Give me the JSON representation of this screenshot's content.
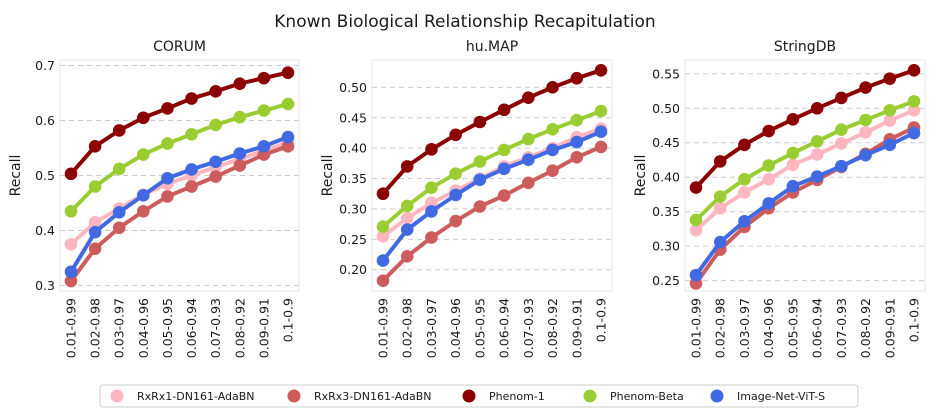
{
  "figure_title": "Known Biological Relationship Recapitulation",
  "chart_data": [
    {
      "type": "line",
      "title": "CORUM",
      "ylabel": "Recall",
      "categories": [
        "0.01-0.99",
        "0.02-0.98",
        "0.03-0.97",
        "0.04-0.96",
        "0.05-0.95",
        "0.06-0.94",
        "0.07-0.93",
        "0.08-0.92",
        "0.09-0.91",
        "0.1-0.9"
      ],
      "ylim": [
        0.29,
        0.71
      ],
      "yticks": [
        0.3,
        0.4,
        0.5,
        0.6,
        0.7
      ],
      "ytick_labels": [
        "0.3",
        "0.4",
        "0.5",
        "0.6",
        "0.7"
      ],
      "series": [
        {
          "name": "RxRx1-DN161-AdaBN",
          "color": "#ffb6c1",
          "values": [
            0.375,
            0.415,
            0.44,
            0.465,
            0.485,
            0.5,
            0.515,
            0.53,
            0.545,
            0.56
          ]
        },
        {
          "name": "RxRx3-DN161-AdaBN",
          "color": "#cd5c5c",
          "values": [
            0.308,
            0.367,
            0.405,
            0.435,
            0.462,
            0.48,
            0.498,
            0.518,
            0.538,
            0.553
          ]
        },
        {
          "name": "Phenom-1",
          "color": "#8b0000",
          "values": [
            0.503,
            0.553,
            0.582,
            0.605,
            0.622,
            0.64,
            0.653,
            0.667,
            0.677,
            0.687
          ]
        },
        {
          "name": "Phenom-Beta",
          "color": "#9acd32",
          "values": [
            0.435,
            0.48,
            0.512,
            0.538,
            0.558,
            0.575,
            0.592,
            0.606,
            0.618,
            0.63
          ]
        },
        {
          "name": "Image-Net-ViT-S",
          "color": "#4169e1",
          "values": [
            0.325,
            0.397,
            0.433,
            0.464,
            0.495,
            0.511,
            0.525,
            0.54,
            0.553,
            0.57
          ]
        }
      ]
    },
    {
      "type": "line",
      "title": "hu.MAP",
      "ylabel": "Recall",
      "categories": [
        "0.01-0.99",
        "0.02-0.98",
        "0.03-0.97",
        "0.04-0.96",
        "0.05-0.95",
        "0.06-0.94",
        "0.07-0.93",
        "0.08-0.92",
        "0.09-0.91",
        "0.1-0.9"
      ],
      "ylim": [
        0.165,
        0.545
      ],
      "yticks": [
        0.2,
        0.25,
        0.3,
        0.35,
        0.4,
        0.45,
        0.5
      ],
      "ytick_labels": [
        "0.20",
        "0.25",
        "0.30",
        "0.35",
        "0.40",
        "0.45",
        "0.50"
      ],
      "series": [
        {
          "name": "RxRx1-DN161-AdaBN",
          "color": "#ffb6c1",
          "values": [
            0.255,
            0.285,
            0.31,
            0.33,
            0.35,
            0.37,
            0.385,
            0.4,
            0.418,
            0.432
          ]
        },
        {
          "name": "RxRx3-DN161-AdaBN",
          "color": "#cd5c5c",
          "values": [
            0.182,
            0.222,
            0.253,
            0.28,
            0.304,
            0.322,
            0.343,
            0.363,
            0.385,
            0.402
          ]
        },
        {
          "name": "Phenom-1",
          "color": "#8b0000",
          "values": [
            0.325,
            0.37,
            0.398,
            0.422,
            0.443,
            0.463,
            0.483,
            0.5,
            0.515,
            0.528
          ]
        },
        {
          "name": "Phenom-Beta",
          "color": "#9acd32",
          "values": [
            0.271,
            0.305,
            0.335,
            0.358,
            0.378,
            0.397,
            0.415,
            0.431,
            0.446,
            0.461
          ]
        },
        {
          "name": "Image-Net-ViT-S",
          "color": "#4169e1",
          "values": [
            0.215,
            0.266,
            0.296,
            0.323,
            0.348,
            0.366,
            0.381,
            0.397,
            0.41,
            0.427
          ]
        }
      ]
    },
    {
      "type": "line",
      "title": "StringDB",
      "ylabel": "Recall",
      "categories": [
        "0.01-0.99",
        "0.02-0.98",
        "0.03-0.97",
        "0.04-0.96",
        "0.05-0.95",
        "0.06-0.94",
        "0.07-0.93",
        "0.08-0.92",
        "0.09-0.91",
        "0.1-0.9"
      ],
      "ylim": [
        0.235,
        0.57
      ],
      "yticks": [
        0.25,
        0.3,
        0.35,
        0.4,
        0.45,
        0.5,
        0.55
      ],
      "ytick_labels": [
        "0.25",
        "0.30",
        "0.35",
        "0.40",
        "0.45",
        "0.50",
        "0.55"
      ],
      "series": [
        {
          "name": "RxRx1-DN161-AdaBN",
          "color": "#ffb6c1",
          "values": [
            0.323,
            0.355,
            0.378,
            0.397,
            0.418,
            0.433,
            0.449,
            0.465,
            0.482,
            0.497
          ]
        },
        {
          "name": "RxRx3-DN161-AdaBN",
          "color": "#cd5c5c",
          "values": [
            0.246,
            0.295,
            0.328,
            0.355,
            0.378,
            0.396,
            0.415,
            0.434,
            0.455,
            0.472
          ]
        },
        {
          "name": "Phenom-1",
          "color": "#8b0000",
          "values": [
            0.385,
            0.423,
            0.447,
            0.467,
            0.484,
            0.5,
            0.515,
            0.53,
            0.543,
            0.555
          ]
        },
        {
          "name": "Phenom-Beta",
          "color": "#9acd32",
          "values": [
            0.338,
            0.372,
            0.397,
            0.417,
            0.435,
            0.452,
            0.469,
            0.483,
            0.497,
            0.51
          ]
        },
        {
          "name": "Image-Net-ViT-S",
          "color": "#4169e1",
          "values": [
            0.258,
            0.306,
            0.336,
            0.362,
            0.387,
            0.401,
            0.416,
            0.432,
            0.447,
            0.464
          ]
        }
      ]
    }
  ],
  "legend": {
    "placement": "bottom-center",
    "entries": [
      {
        "label": "RxRx1-DN161-AdaBN",
        "color": "#ffb6c1"
      },
      {
        "label": "RxRx3-DN161-AdaBN",
        "color": "#cd5c5c"
      },
      {
        "label": "Phenom-1",
        "color": "#8b0000"
      },
      {
        "label": "Phenom-Beta",
        "color": "#9acd32"
      },
      {
        "label": "Image-Net-ViT-S",
        "color": "#4169e1"
      }
    ]
  }
}
